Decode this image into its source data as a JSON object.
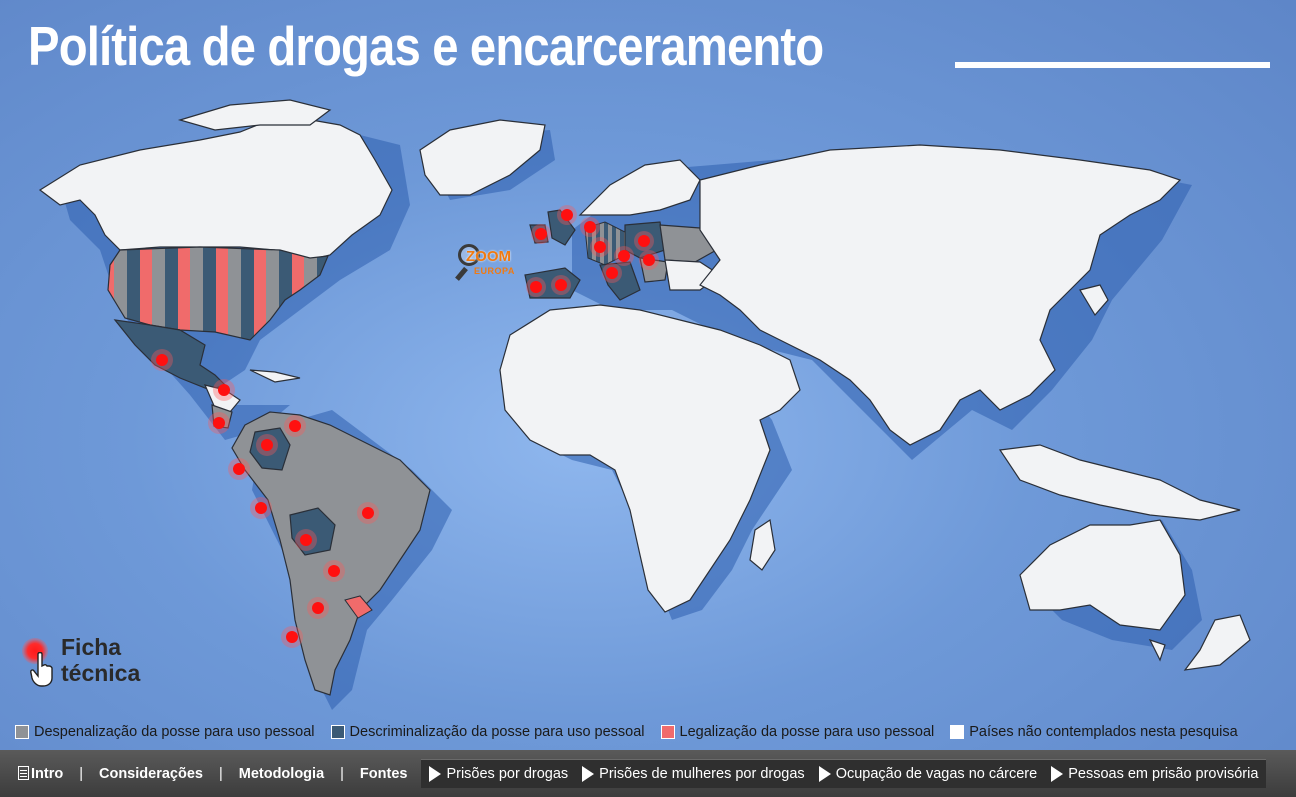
{
  "title": "Política de drogas e encarceramento",
  "zoom": {
    "label": "ZOOM",
    "sublabel": "EUROPA",
    "icon": "magnifier-icon"
  },
  "ficha": {
    "line1": "Ficha",
    "line2": "técnica",
    "icon": "pointer-hand-icon"
  },
  "legend": [
    {
      "label": "Despenalização da posse para uso pessoal",
      "color": "#8f9296"
    },
    {
      "label": "Descriminalização da posse para uso pessoal",
      "color": "#3b5a75"
    },
    {
      "label": "Legalização da posse para uso pessoal",
      "color": "#f06b6b"
    },
    {
      "label": "Países não contemplados nesta pesquisa",
      "color": "#ffffff"
    }
  ],
  "nav": {
    "left": [
      "Intro",
      "Considerações",
      "Metodologia",
      "Fontes"
    ],
    "separator": "|",
    "right": [
      "Prisões por drogas",
      "Prisões de mulheres por drogas",
      "Ocupação de vagas no cárcere",
      "Pessoas em prisão provisória"
    ]
  },
  "colors": {
    "background": "#6e99d8",
    "dot": "#ff1010"
  }
}
